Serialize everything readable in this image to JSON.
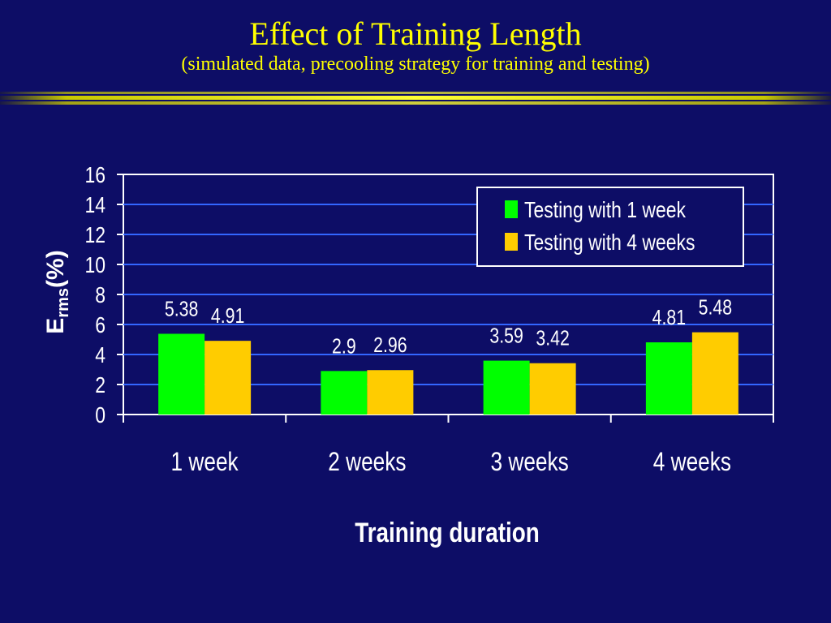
{
  "slide": {
    "title": "Effect of Training Length",
    "subtitle": "(simulated data, precooling strategy for training and testing)"
  },
  "colors": {
    "background": "#0d0d66",
    "title": "#ffff00",
    "gridline": "#3366ff",
    "series_1": "#00ff00",
    "series_2": "#ffcc00",
    "text": "#ffffff"
  },
  "chart_data": {
    "type": "bar",
    "categories": [
      "1 week",
      "2 weeks",
      "3 weeks",
      "4 weeks"
    ],
    "series": [
      {
        "name": "Testing with 1 week",
        "values": [
          5.38,
          2.9,
          3.59,
          4.81
        ]
      },
      {
        "name": "Testing with 4 weeks",
        "values": [
          4.91,
          2.96,
          3.42,
          5.48
        ]
      }
    ],
    "data_labels": [
      [
        "5.38",
        "2.9",
        "3.59",
        "4.81"
      ],
      [
        "4.91",
        "2.96",
        "3.42",
        "5.48"
      ]
    ],
    "xlabel": "Training duration",
    "ylabel_main": "E",
    "ylabel_sub": "rms",
    "ylabel_suffix": "(%)",
    "ylim": [
      0,
      16
    ],
    "yticks": [
      0,
      2,
      4,
      6,
      8,
      10,
      12,
      14,
      16
    ],
    "grid": true,
    "legend_position": "top-right"
  }
}
